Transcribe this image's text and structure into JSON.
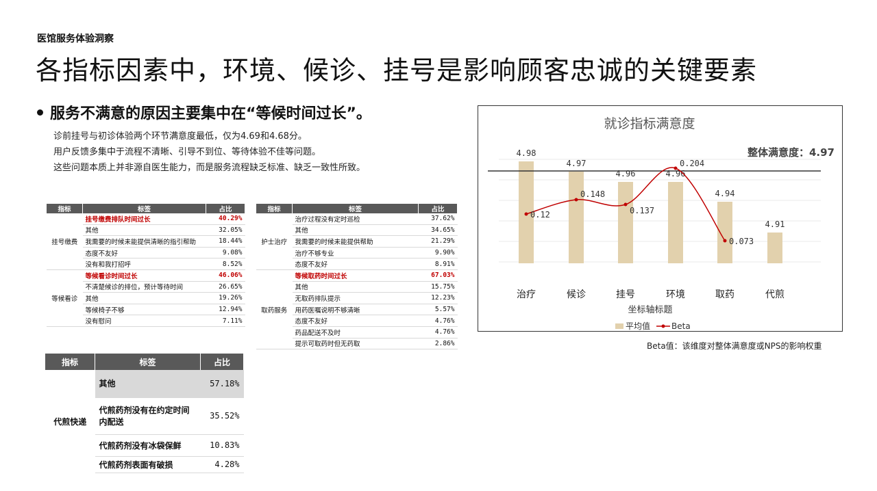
{
  "kicker": "医馆服务体验洞察",
  "headline": "各指标因素中，环境、候诊、挂号是影响顾客忠诚的关键要素",
  "bullet": {
    "title": "服务不满意的原因主要集中在“等候时间过长”。",
    "lines": [
      "诊前挂号与初诊体验两个环节满意度最低，仅为4.69和4.68分。",
      "用户反馈多集中于流程不清晰、引导不到位、等待体验不佳等问题。",
      "这些问题本质上并非源自医生能力，而是服务流程缺乏标准、缺乏一致性所致。"
    ]
  },
  "table_headers": {
    "indicator": "指标",
    "label": "标签",
    "share": "占比"
  },
  "table1": {
    "groups": [
      {
        "indicator": "挂号缴费",
        "rows": [
          {
            "label": "挂号缴费排队时间过长",
            "pct": "40.29%",
            "highlight": true
          },
          {
            "label": "其他",
            "pct": "32.05%"
          },
          {
            "label": "我需要的时候未能提供清晰的指引帮助",
            "pct": "18.44%"
          },
          {
            "label": "态度不友好",
            "pct": "9.08%"
          },
          {
            "label": "没有和我打招呼",
            "pct": "8.52%"
          }
        ]
      },
      {
        "indicator": "等候看诊",
        "rows": [
          {
            "label": "等候看诊时间过长",
            "pct": "46.06%",
            "highlight": true
          },
          {
            "label": "不清楚候诊的排位，预计等待时间",
            "pct": "26.65%"
          },
          {
            "label": "其他",
            "pct": "19.26%"
          },
          {
            "label": "等候椅子不够",
            "pct": "12.94%"
          },
          {
            "label": "没有慰问",
            "pct": "7.11%"
          }
        ]
      }
    ]
  },
  "table2": {
    "groups": [
      {
        "indicator": "护士治疗",
        "rows": [
          {
            "label": "治疗过程没有定时巡检",
            "pct": "37.62%"
          },
          {
            "label": "其他",
            "pct": "34.65%"
          },
          {
            "label": "我需要的时候未能提供帮助",
            "pct": "21.29%"
          },
          {
            "label": "治疗不够专业",
            "pct": "9.90%"
          },
          {
            "label": "态度不友好",
            "pct": "8.91%"
          }
        ]
      },
      {
        "indicator": "取药服务",
        "rows": [
          {
            "label": "等候取药时间过长",
            "pct": "67.03%",
            "highlight": true
          },
          {
            "label": "其他",
            "pct": "15.75%"
          },
          {
            "label": "无取药排队提示",
            "pct": "12.23%"
          },
          {
            "label": "用药医嘱说明不够清晰",
            "pct": "5.57%"
          },
          {
            "label": "态度不友好",
            "pct": "4.76%"
          },
          {
            "label": "药品配送不及时",
            "pct": "4.76%"
          },
          {
            "label": "提示可取药时但无药取",
            "pct": "2.86%"
          }
        ]
      }
    ]
  },
  "table3": {
    "indicator": "代煎快递",
    "rows": [
      {
        "label": "其他",
        "pct": "57.18%",
        "shade": true
      },
      {
        "label": "代煎药剂没有在约定时间内配送",
        "pct": "35.52%"
      },
      {
        "label": "代煎药剂没有冰袋保鲜",
        "pct": "10.83%"
      },
      {
        "label": "代煎药剂表面有破损",
        "pct": "4.28%"
      }
    ]
  },
  "chart_data": {
    "type": "bar",
    "title": "就诊指标满意度",
    "xlabel": "坐标轴标题",
    "categories": [
      "治疗",
      "候诊",
      "挂号",
      "环境",
      "取药",
      "代煎"
    ],
    "series": [
      {
        "name": "平均值",
        "kind": "bar",
        "values": [
          4.98,
          4.97,
          4.96,
          4.96,
          4.94,
          4.91
        ],
        "color": "#e2d1ad"
      },
      {
        "name": "Beta",
        "kind": "line",
        "values": [
          0.12,
          0.148,
          0.137,
          0.204,
          0.073,
          null
        ],
        "color": "#c00000"
      }
    ],
    "bar_labels": [
      "4.98",
      "4.97",
      "4.96",
      "4.96",
      "4.94",
      "4.91"
    ],
    "line_labels": [
      "0.12",
      "0.148",
      "0.137",
      "0.204",
      "0.073"
    ],
    "reference_line": {
      "label": "整体满意度：4.97",
      "value": 4.97
    },
    "legend_position": "bottom",
    "grid": true
  },
  "footnote": "Beta值：该维度对整体满意度或NPS的影响权重"
}
